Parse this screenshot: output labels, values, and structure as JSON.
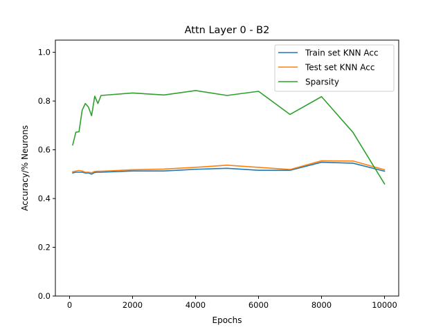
{
  "chart_data": {
    "type": "line",
    "title": "Attn Layer 0 - B2",
    "xlabel": "Epochs",
    "ylabel": "Accuracy/% Neurons",
    "xlim": [
      -450,
      10450
    ],
    "ylim": [
      0.0,
      1.05
    ],
    "xticks": [
      0,
      2000,
      4000,
      6000,
      8000,
      10000
    ],
    "yticks": [
      0.0,
      0.2,
      0.4,
      0.6,
      0.8,
      1.0
    ],
    "xtick_labels": [
      "0",
      "2000",
      "4000",
      "6000",
      "8000",
      "10000"
    ],
    "ytick_labels": [
      "0.0",
      "0.2",
      "0.4",
      "0.6",
      "0.8",
      "1.0"
    ],
    "grid": false,
    "legend_position": "top-right",
    "series": [
      {
        "name": "Train set KNN Acc",
        "color": "#1f77b4",
        "x": [
          100,
          200,
          300,
          400,
          500,
          600,
          700,
          800,
          900,
          1000,
          2000,
          3000,
          4000,
          5000,
          6000,
          7000,
          8000,
          9000,
          10000
        ],
        "y": [
          0.505,
          0.508,
          0.508,
          0.508,
          0.505,
          0.505,
          0.5,
          0.507,
          0.508,
          0.508,
          0.513,
          0.513,
          0.52,
          0.524,
          0.516,
          0.516,
          0.549,
          0.545,
          0.512
        ]
      },
      {
        "name": "Test set KNN Acc",
        "color": "#ff7f0e",
        "x": [
          100,
          200,
          300,
          400,
          500,
          600,
          700,
          800,
          900,
          1000,
          2000,
          3000,
          4000,
          5000,
          6000,
          7000,
          8000,
          9000,
          10000
        ],
        "y": [
          0.51,
          0.513,
          0.515,
          0.513,
          0.508,
          0.508,
          0.506,
          0.511,
          0.512,
          0.512,
          0.518,
          0.521,
          0.528,
          0.537,
          0.528,
          0.519,
          0.555,
          0.554,
          0.518
        ]
      },
      {
        "name": "Sparsity",
        "color": "#2ca02c",
        "x": [
          100,
          200,
          300,
          400,
          500,
          600,
          700,
          800,
          900,
          1000,
          2000,
          3000,
          4000,
          5000,
          6000,
          7000,
          8000,
          9000,
          10000
        ],
        "y": [
          0.62,
          0.672,
          0.674,
          0.762,
          0.79,
          0.775,
          0.74,
          0.82,
          0.79,
          0.823,
          0.833,
          0.825,
          0.843,
          0.823,
          0.84,
          0.745,
          0.818,
          0.671,
          0.46
        ]
      }
    ]
  }
}
